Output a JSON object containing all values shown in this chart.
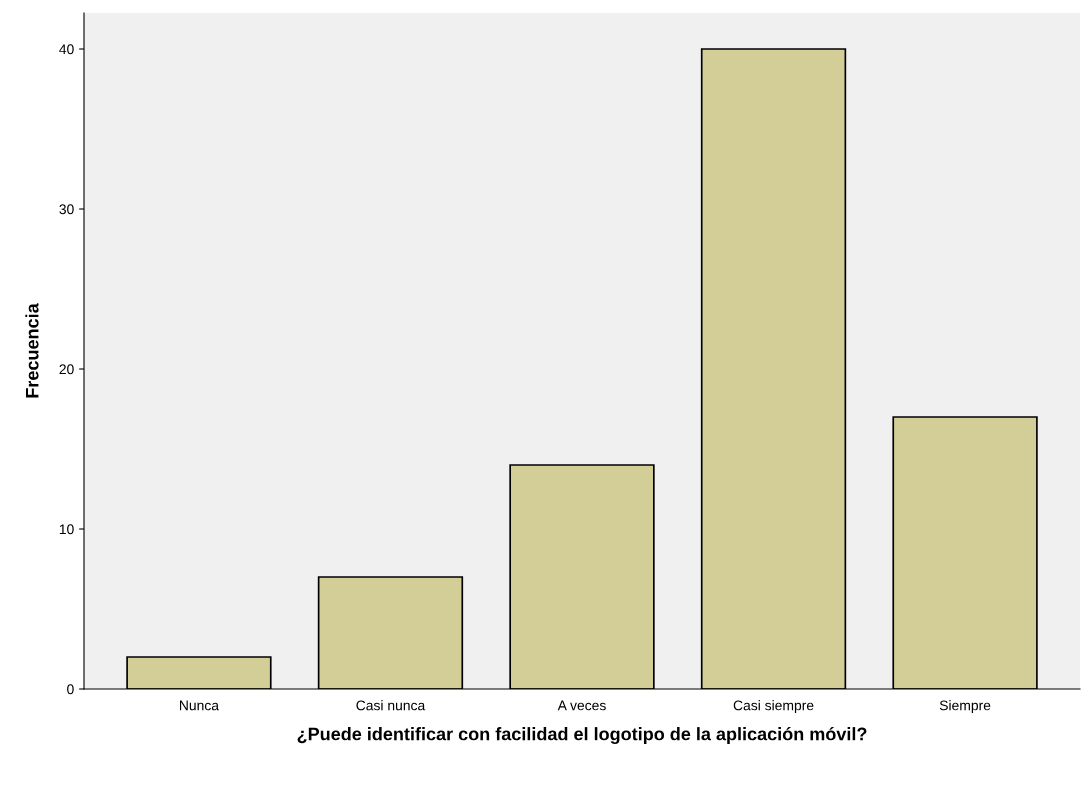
{
  "chart_data": {
    "type": "bar",
    "xlabel": "¿Puede identificar con facilidad el logotipo de la aplicación móvil?",
    "ylabel": "Frecuencia",
    "categories": [
      "Nunca",
      "Casi nunca",
      "A veces",
      "Casi siempre",
      "Siempre"
    ],
    "values": [
      2,
      7,
      14,
      40,
      17
    ],
    "color": "#d3ce97",
    "ylim": [
      0,
      42.25
    ],
    "yticks": [
      0,
      10,
      20,
      30,
      40
    ],
    "grid": false
  }
}
